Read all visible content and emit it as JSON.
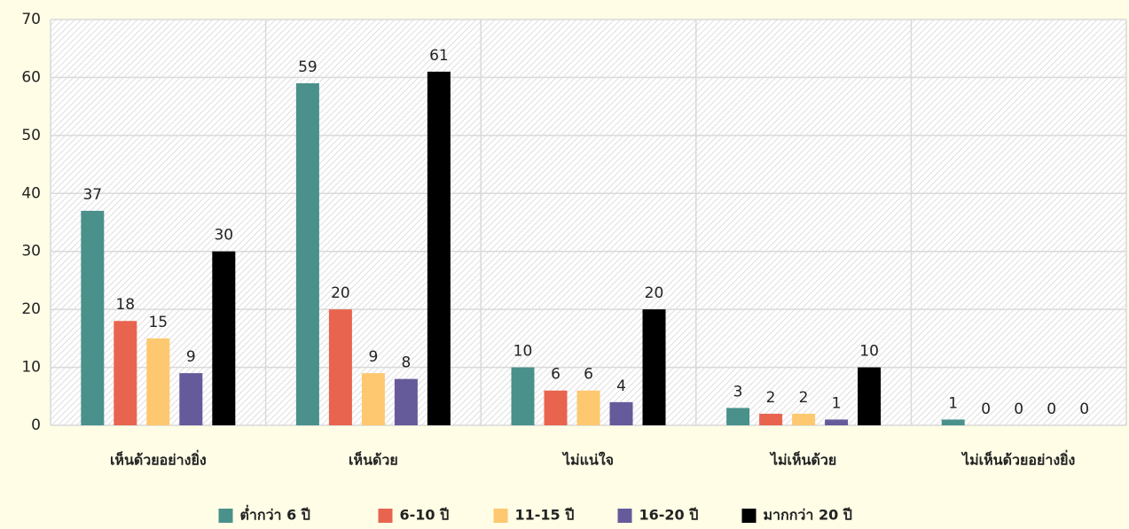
{
  "chart_data": {
    "type": "bar",
    "categories": [
      "เห็นด้วยอย่างยิ่ง",
      "เห็นด้วย",
      "ไม่แน่ใจ",
      "ไม่เห็นด้วย",
      "ไม่เห็นด้วยอย่างยิ่ง"
    ],
    "series": [
      {
        "name": "ต่ำกว่า 6 ปี",
        "color": "#4a918b",
        "values": [
          37,
          59,
          10,
          3,
          1
        ]
      },
      {
        "name": "6-10 ปี",
        "color": "#e8644f",
        "values": [
          18,
          20,
          6,
          2,
          0
        ]
      },
      {
        "name": "11-15 ปี",
        "color": "#fdc86f",
        "values": [
          15,
          9,
          6,
          2,
          0
        ]
      },
      {
        "name": "16-20 ปี",
        "color": "#655b9a",
        "values": [
          9,
          8,
          4,
          1,
          0
        ]
      },
      {
        "name": "มากกว่า 20 ปี",
        "color": "#000000",
        "values": [
          30,
          61,
          20,
          10,
          0
        ]
      }
    ],
    "ylim": [
      0,
      70
    ],
    "yticks": [
      0,
      10,
      20,
      30,
      40,
      50,
      60,
      70
    ],
    "grid": true,
    "legend": "bottom"
  }
}
